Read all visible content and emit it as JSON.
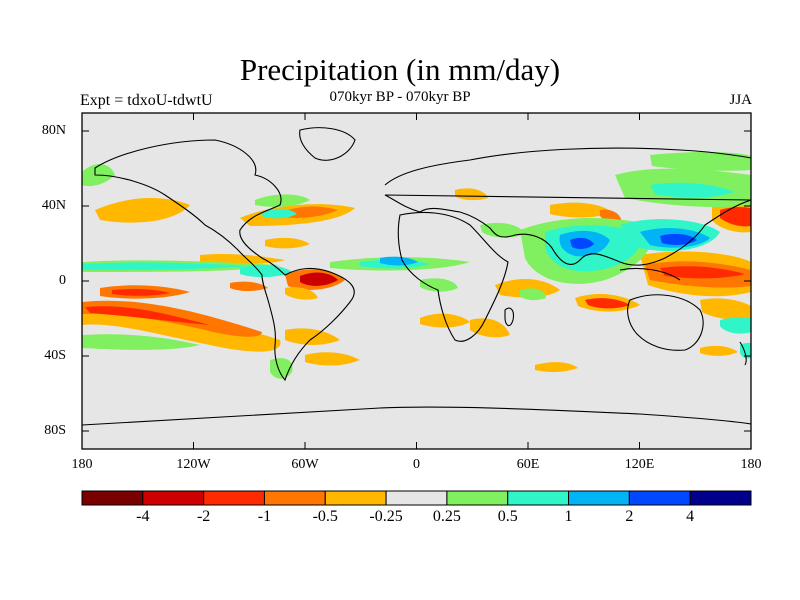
{
  "header": {
    "title": "Precipitation (in mm/day)",
    "left_string": "Expt = tdxoU-tdwtU",
    "center_string": "070kyr BP - 070kyr BP",
    "right_string": "JJA"
  },
  "axes": {
    "y_ticks": [
      "80N",
      "40N",
      "0",
      "40S",
      "80S"
    ],
    "x_ticks": [
      "180",
      "120W",
      "60W",
      "0",
      "60E",
      "120E",
      "180"
    ]
  },
  "map": {
    "projection": "cylindrical equidistant",
    "lon_range": [
      -180,
      180
    ],
    "lat_range": [
      -90,
      90
    ],
    "background_color": "#e6e6e6"
  },
  "colorbar": {
    "colors": [
      "#7a0000",
      "#cc0000",
      "#ff2a00",
      "#ff7700",
      "#ffb700",
      "#e6e6e6",
      "#80f060",
      "#30f5c8",
      "#00b4f5",
      "#0048ff",
      "#00008c"
    ],
    "labels": [
      "-4",
      "-2",
      "-1",
      "-0.5",
      "-0.25",
      "0.25",
      "0.5",
      "1",
      "2",
      "4"
    ]
  }
}
